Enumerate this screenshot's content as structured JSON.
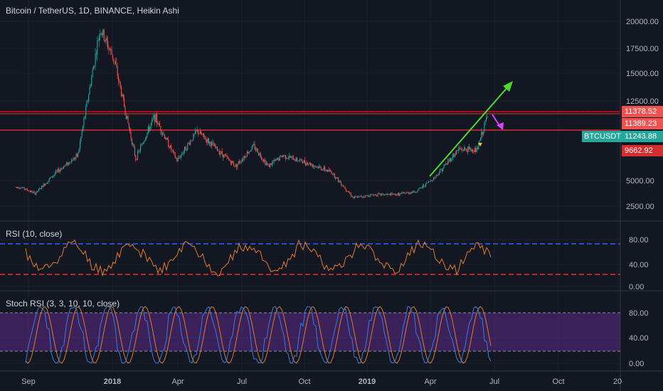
{
  "title": "Bitcoin / TetherUS, 1D, BINANCE, Heikin Ashi",
  "panes": {
    "rsi_label": "RSI (10, close)",
    "stoch_label": "Stoch RSI (3, 3, 10, 10, close)"
  },
  "price_axis": [
    "20000.00",
    "17500.00",
    "15000.00",
    "12500.00",
    "5000.00",
    "2500.00"
  ],
  "rsi_axis": [
    "80.00",
    "40.00",
    "0.00"
  ],
  "stoch_axis": [
    "80.00",
    "40.00",
    "0.00"
  ],
  "time_axis": [
    "Sep",
    "2018",
    "Apr",
    "Jul",
    "Oct",
    "2019",
    "Apr",
    "Jul",
    "Oct",
    "20"
  ],
  "badges": {
    "resistance_top": "11378.52",
    "resistance_low": "11389.23",
    "symbol": "BTCUSDT",
    "last_price": "11243.88",
    "marker_price": "9662.92"
  },
  "colors": {
    "background": "#131722",
    "up": "#26a69a",
    "down": "#ef5350",
    "rsi_line": "#e07b2a",
    "rsi_upper": "#2962ff",
    "rsi_lower": "#ef2f2f",
    "stoch_k": "#3d7bd9",
    "stoch_d": "#e07b2a",
    "stoch_band": "#5b2a86",
    "trend_arrow": "#4cdb2e",
    "down_arrow": "#e040fb"
  },
  "chart_data": {
    "type": "line",
    "series": [
      {
        "name": "BTCUSDT",
        "x": [
          "2017-08-25",
          "2017-09-15",
          "2017-10-15",
          "2017-11-15",
          "2017-12-17",
          "2018-01-06",
          "2018-02-06",
          "2018-03-05",
          "2018-04-06",
          "2018-05-05",
          "2018-06-29",
          "2018-07-25",
          "2018-08-15",
          "2018-09-05",
          "2018-10-10",
          "2018-11-14",
          "2018-12-15",
          "2019-01-15",
          "2019-02-15",
          "2019-03-15",
          "2019-04-10",
          "2019-05-15",
          "2019-06-10",
          "2019-06-26"
        ],
        "values": [
          4300,
          3700,
          5700,
          7300,
          19300,
          16400,
          7000,
          11000,
          6800,
          9600,
          6300,
          8200,
          6300,
          7300,
          6600,
          5700,
          3300,
          3600,
          3600,
          3900,
          5200,
          7900,
          7800,
          11243
        ]
      }
    ],
    "ylim": [
      2000,
      21000
    ],
    "hlines": [
      11378.52,
      9662.92
    ],
    "annotations": [
      "trend arrow up",
      "down arrow"
    ]
  }
}
